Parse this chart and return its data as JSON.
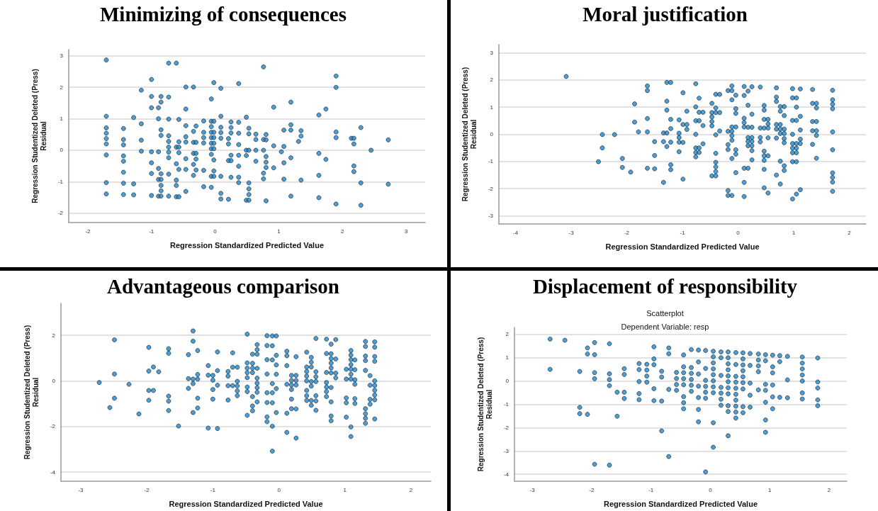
{
  "chart_data": [
    {
      "type": "scatter",
      "title": "Minimizing of consequences",
      "xlabel": "Regression Standardized Predicted Value",
      "ylabel": "Regression Studentized Deleted (Press)\nResidual",
      "xlim": [
        -2.3,
        3.3
      ],
      "ylim": [
        -2.3,
        3.2
      ],
      "xticks": [
        -2,
        -1,
        0,
        1,
        2,
        3
      ],
      "yticks": [
        -2,
        -1,
        0,
        1,
        2,
        3
      ],
      "grid": "y",
      "marker": "circle",
      "color": "#1f86cc",
      "x": [
        -1.71,
        -1.71,
        -1.71,
        -1.71,
        -1.71,
        -1.71,
        -1.71,
        -1.71,
        -1.71,
        -1.44,
        -1.44,
        -1.44,
        -1.44,
        -1.44,
        -1.44,
        -1.44,
        -1.44,
        -1.28,
        -1.28,
        -1.28,
        -1.16,
        -1.16,
        -1.16,
        -1.16,
        -1.0,
        -1.0,
        -1.0,
        -1.0,
        -1.0,
        -1.0,
        -1.0,
        -0.89,
        -0.89,
        -0.89,
        -0.89,
        -0.89,
        -0.89,
        -0.85,
        -0.85,
        -0.85,
        -0.85,
        -0.85,
        -0.85,
        -0.85,
        -0.85,
        -0.85,
        -0.73,
        -0.73,
        -0.73,
        -0.73,
        -0.73,
        -0.73,
        -0.73,
        -0.73,
        -0.73,
        -0.73,
        -0.61,
        -0.61,
        -0.61,
        -0.61,
        -0.61,
        -0.61,
        -0.57,
        -0.57,
        -0.57,
        -0.57,
        -0.57,
        -0.57,
        -0.46,
        -0.46,
        -0.46,
        -0.46,
        -0.46,
        -0.46,
        -0.46,
        -0.46,
        -0.34,
        -0.34,
        -0.34,
        -0.34,
        -0.34,
        -0.34,
        -0.3,
        -0.3,
        -0.3,
        -0.3,
        -0.3,
        -0.18,
        -0.18,
        -0.18,
        -0.18,
        -0.18,
        -0.18,
        -0.06,
        -0.06,
        -0.06,
        -0.06,
        -0.06,
        -0.06,
        -0.06,
        -0.06,
        -0.06,
        -0.06,
        -0.02,
        -0.02,
        -0.02,
        -0.02,
        -0.02,
        -0.02,
        -0.02,
        -0.02,
        -0.02,
        0.09,
        0.09,
        0.09,
        0.09,
        0.09,
        0.09,
        0.09,
        0.09,
        0.21,
        0.21,
        0.21,
        0.21,
        0.25,
        0.25,
        0.25,
        0.25,
        0.25,
        0.25,
        0.37,
        0.37,
        0.37,
        0.37,
        0.37,
        0.37,
        0.37,
        0.37,
        0.49,
        0.49,
        0.49,
        0.49,
        0.53,
        0.53,
        0.53,
        0.53,
        0.53,
        0.53,
        0.53,
        0.64,
        0.64,
        0.64,
        0.64,
        0.76,
        0.76,
        0.76,
        0.76,
        0.76,
        0.8,
        0.8,
        0.8,
        0.8,
        0.8,
        0.8,
        0.92,
        0.92,
        0.92,
        1.04,
        1.08,
        1.08,
        1.08,
        1.08,
        1.19,
        1.19,
        1.19,
        1.19,
        1.19,
        1.31,
        1.35,
        1.35,
        1.35,
        1.63,
        1.63,
        1.63,
        1.63,
        1.74,
        1.74,
        1.9,
        1.9,
        1.9,
        1.9,
        1.9,
        2.14,
        2.18,
        2.18,
        2.18,
        2.18,
        2.29,
        2.29,
        2.29,
        2.45,
        2.72,
        2.72
      ],
      "values": [
        2.87,
        1.08,
        0.71,
        0.54,
        0.37,
        0.2,
        -0.15,
        -1.03,
        -1.39,
        0.69,
        0.34,
        0.17,
        -0.18,
        -0.35,
        -0.7,
        -1.05,
        -1.41,
        1.04,
        -1.07,
        -1.42,
        1.91,
        0.84,
        0.32,
        -0.03,
        2.25,
        1.71,
        1.35,
        -0.05,
        -0.4,
        -0.74,
        -1.44,
        1.35,
        1.0,
        -0.05,
        -0.58,
        -0.93,
        -1.46,
        1.71,
        1.53,
        0.65,
        0.47,
        -0.75,
        -0.93,
        -1.12,
        -1.29,
        -1.46,
        2.77,
        1.69,
        0.99,
        0.46,
        0.28,
        0.1,
        -0.06,
        -0.24,
        -0.76,
        -1.46,
        2.77,
        0.1,
        -0.43,
        -0.95,
        -1.12,
        -1.48,
        0.98,
        0.27,
        0.1,
        -0.08,
        -0.61,
        -1.48,
        2.01,
        1.31,
        0.78,
        0.43,
        0.26,
        -0.27,
        -0.61,
        -1.31,
        2.01,
        0.6,
        0.25,
        -0.1,
        -0.45,
        -0.8,
        0.77,
        0.25,
        -0.1,
        -0.28,
        -0.63,
        0.93,
        0.57,
        0.4,
        0.23,
        -0.64,
        -1.16,
        1.63,
        0.92,
        0.75,
        0.57,
        0.4,
        0.22,
        0.05,
        -0.13,
        -0.83,
        -1.18,
        2.15,
        0.92,
        0.57,
        0.4,
        0.22,
        0.05,
        -0.31,
        -0.66,
        -0.83,
        1.97,
        1.08,
        0.73,
        0.56,
        0.38,
        -0.83,
        -1.37,
        -1.55,
        0.37,
        0.2,
        -0.33,
        -1.56,
        0.9,
        0.72,
        0.55,
        -0.16,
        -0.33,
        -0.86,
        2.12,
        0.89,
        0.54,
        0.18,
        -0.16,
        -0.51,
        -0.86,
        -1.03,
        1.05,
        0.0,
        -0.17,
        -1.59,
        0.7,
        0.52,
        0.0,
        -1.04,
        -1.23,
        -1.41,
        -1.59,
        0.51,
        0.34,
        0.0,
        -0.35,
        2.65,
        0.34,
        0.0,
        -0.73,
        -0.91,
        0.5,
        0.33,
        -0.2,
        -0.38,
        -0.55,
        -1.61,
        1.37,
        0.14,
        -0.56,
        -0.05,
        0.64,
        0.12,
        -0.4,
        -0.92,
        1.53,
        0.81,
        0.64,
        -0.24,
        -1.46,
        0.28,
        0.62,
        0.45,
        -0.95,
        1.12,
        -0.1,
        -0.8,
        -1.51,
        1.31,
        -0.29,
        2.36,
        2.0,
        0.58,
        0.4,
        -1.71,
        0.38,
        0.38,
        0.2,
        -0.5,
        -0.68,
        0.72,
        -1.04,
        -1.75,
        0.0,
        0.33,
        -1.08
      ]
    },
    {
      "type": "scatter",
      "title": "Moral justification",
      "xlabel": "Regression Standardized Predicted Value",
      "ylabel": "Regression Studentized Deleted (Press)\nResidual",
      "xlim": [
        -4.3,
        2.3
      ],
      "ylim": [
        -3.3,
        3.3
      ],
      "xticks": [
        -4,
        -3,
        -2,
        -1,
        0,
        1,
        2
      ],
      "yticks": [
        -3,
        -2,
        -1,
        0,
        1,
        2,
        3
      ],
      "grid": "y",
      "marker": "circle",
      "color": "#1f86cc",
      "x": [
        -3.09,
        -2.51,
        -2.44,
        -2.44,
        -2.22,
        -2.08,
        -2.08,
        -1.93,
        -1.86,
        -1.86,
        -1.79,
        -1.63,
        -1.63,
        -1.63,
        -1.63,
        -1.63,
        -1.5,
        -1.5,
        -1.5,
        -1.34,
        -1.34,
        -1.34,
        -1.28,
        -1.28,
        -1.28,
        -1.28,
        -1.28,
        -1.21,
        -1.21,
        -1.21,
        -1.21,
        -1.21,
        -1.21,
        -1.06,
        -1.06,
        -1.06,
        -1.06,
        -1.06,
        -0.99,
        -0.99,
        -0.99,
        -0.99,
        -0.92,
        -0.92,
        -0.92,
        -0.76,
        -0.76,
        -0.76,
        -0.76,
        -0.76,
        -0.76,
        -0.76,
        -0.7,
        -0.7,
        -0.7,
        -0.7,
        -0.7,
        -0.63,
        -0.63,
        -0.63,
        -0.47,
        -0.47,
        -0.47,
        -0.47,
        -0.47,
        -0.47,
        -0.4,
        -0.4,
        -0.4,
        -0.4,
        -0.4,
        -0.4,
        -0.4,
        -0.4,
        -0.4,
        -0.33,
        -0.33,
        -0.33,
        -0.18,
        -0.18,
        -0.18,
        -0.18,
        -0.18,
        -0.18,
        -0.11,
        -0.11,
        -0.11,
        -0.11,
        -0.11,
        -0.11,
        -0.11,
        -0.11,
        -0.11,
        -0.04,
        -0.04,
        -0.04,
        -0.04,
        -0.04,
        -0.04,
        -0.04,
        0.11,
        0.11,
        0.11,
        0.11,
        0.11,
        0.11,
        0.11,
        0.11,
        0.18,
        0.18,
        0.18,
        0.18,
        0.18,
        0.18,
        0.18,
        0.25,
        0.25,
        0.25,
        0.25,
        0.25,
        0.25,
        0.25,
        0.25,
        0.4,
        0.4,
        0.4,
        0.4,
        0.47,
        0.47,
        0.47,
        0.47,
        0.47,
        0.47,
        0.47,
        0.47,
        0.47,
        0.54,
        0.54,
        0.54,
        0.54,
        0.54,
        0.54,
        0.69,
        0.69,
        0.69,
        0.69,
        0.69,
        0.69,
        0.69,
        0.76,
        0.76,
        0.76,
        0.76,
        0.76,
        0.76,
        0.76,
        0.83,
        0.83,
        0.83,
        0.83,
        0.83,
        0.83,
        0.83,
        0.83,
        0.98,
        0.98,
        0.98,
        0.98,
        0.98,
        0.98,
        0.98,
        0.98,
        0.98,
        1.05,
        1.05,
        1.05,
        1.05,
        1.05,
        1.05,
        1.05,
        1.05,
        1.12,
        1.12,
        1.12,
        1.12,
        1.12,
        1.12,
        1.34,
        1.34,
        1.34,
        1.34,
        1.34,
        1.41,
        1.41,
        1.41,
        1.41,
        1.41,
        1.41,
        1.7,
        1.7,
        1.7,
        1.7,
        1.7,
        1.7,
        1.7,
        1.7,
        1.7,
        1.7
      ],
      "values": [
        2.13,
        -1.01,
        -0.01,
        -0.5,
        -0.01,
        -0.89,
        -1.22,
        -1.39,
        1.12,
        0.45,
        0.09,
        1.78,
        1.61,
        0.58,
        0.09,
        -1.25,
        -0.27,
        -0.78,
        -1.27,
        0.05,
        -0.27,
        -1.77,
        1.91,
        1.22,
        0.89,
        0.05,
        -0.45,
        1.91,
        0.55,
        0.21,
        -0.29,
        -1.12,
        -1.3,
        0.53,
        0.04,
        -0.12,
        -0.29,
        -0.64,
        1.53,
        0.36,
        -0.3,
        -1.65,
        0.85,
        0.36,
        0.18,
        1.86,
        1.01,
        0.5,
        0.0,
        -0.5,
        -0.67,
        -0.83,
        1.33,
        0.81,
        0.5,
        -0.5,
        -0.67,
        0.81,
        0.32,
        -0.35,
        1.14,
        0.8,
        0.64,
        0.47,
        0.31,
        -1.53,
        1.47,
        0.97,
        0.8,
        -0.02,
        -0.7,
        -1.03,
        -1.2,
        -1.37,
        -1.53,
        1.47,
        0.8,
        0.12,
        1.61,
        0.11,
        -0.38,
        -0.56,
        -2.07,
        -2.25,
        1.78,
        1.61,
        1.27,
        0.27,
        0.11,
        -0.05,
        -0.22,
        -0.89,
        -2.25,
        1.44,
        0.94,
        0.77,
        0.27,
        -0.57,
        -0.73,
        -1.41,
        1.76,
        1.43,
        0.59,
        0.43,
        0.27,
        -1.25,
        -1.77,
        -2.29,
        1.59,
        1.07,
        0.26,
        -0.12,
        -0.26,
        -0.42,
        -1.25,
        1.75,
        0.74,
        0.26,
        -0.12,
        -0.26,
        -0.42,
        -0.6,
        -0.94,
        1.74,
        0.23,
        -0.12,
        -0.28,
        1.06,
        0.89,
        0.55,
        0.23,
        -0.62,
        -0.79,
        -0.96,
        -1.29,
        -1.97,
        0.55,
        0.38,
        0.23,
        -0.13,
        -0.79,
        -2.16,
        1.71,
        1.37,
        1.21,
        0.36,
        0.19,
        -0.14,
        -1.5,
        1.02,
        0.85,
        0.36,
        0.19,
        0.03,
        -0.99,
        -1.83,
        1.02,
        0.69,
        0.19,
        0.03,
        -0.16,
        -0.31,
        -1.16,
        -1.33,
        1.68,
        1.34,
        0.51,
        0.0,
        -0.34,
        -0.51,
        -0.68,
        -1.01,
        -2.38,
        1.34,
        1.0,
        0.51,
        -0.34,
        -0.51,
        -0.68,
        -1.01,
        -2.2,
        1.67,
        0.66,
        0.16,
        -0.18,
        -0.34,
        -2.04,
        1.65,
        1.14,
        0.47,
        0.13,
        -0.37,
        1.14,
        0.97,
        0.47,
        0.13,
        -0.04,
        -0.88,
        1.62,
        1.27,
        1.11,
        0.94,
        0.09,
        -0.57,
        -1.42,
        -1.59,
        -1.76,
        -2.1
      ]
    },
    {
      "type": "scatter",
      "title": "Advantageous comparison",
      "xlabel": "Regression Standardized Predicted Value",
      "ylabel": "Regression Studentized Deleted (Press)\nResidual",
      "xlim": [
        -3.3,
        2.3
      ],
      "ylim": [
        -4.4,
        3.4
      ],
      "xticks": [
        -3,
        -2,
        -1,
        0,
        1,
        2
      ],
      "yticks": [
        -4,
        -2,
        0,
        2
      ],
      "grid": "y",
      "marker": "circle",
      "color": "#1f86cc",
      "x": [
        -2.72,
        -2.56,
        -2.49,
        -2.49,
        -2.49,
        -2.27,
        -2.12,
        -1.97,
        -1.97,
        -1.97,
        -1.97,
        -1.9,
        -1.9,
        -1.82,
        -1.67,
        -1.67,
        -1.67,
        -1.67,
        -1.67,
        -1.52,
        -1.37,
        -1.37,
        -1.37,
        -1.3,
        -1.3,
        -1.3,
        -1.3,
        -1.3,
        -1.23,
        -1.23,
        -1.23,
        -1.23,
        -1.23,
        -1.07,
        -1.07,
        -1.07,
        -1.0,
        -1.0,
        -1.0,
        -1.0,
        -0.93,
        -0.93,
        -0.93,
        -0.93,
        -0.77,
        -0.77,
        -0.77,
        -0.77,
        -0.7,
        -0.7,
        -0.7,
        -0.63,
        -0.63,
        -0.63,
        -0.63,
        -0.63,
        -0.48,
        -0.48,
        -0.48,
        -0.48,
        -0.48,
        -0.48,
        -0.48,
        -0.48,
        -0.4,
        -0.4,
        -0.4,
        -0.4,
        -0.4,
        -0.4,
        -0.4,
        -0.33,
        -0.33,
        -0.33,
        -0.33,
        -0.33,
        -0.33,
        -0.33,
        -0.33,
        -0.33,
        -0.18,
        -0.18,
        -0.18,
        -0.18,
        -0.18,
        -0.18,
        -0.18,
        -0.18,
        -0.1,
        -0.1,
        -0.1,
        -0.1,
        -0.1,
        -0.1,
        -0.1,
        -0.1,
        -0.04,
        -0.04,
        -0.04,
        -0.04,
        -0.04,
        -0.04,
        0.12,
        0.12,
        0.12,
        0.12,
        0.12,
        0.12,
        0.19,
        0.19,
        0.19,
        0.19,
        0.19,
        0.19,
        0.26,
        0.26,
        0.26,
        0.26,
        0.26,
        0.26,
        0.42,
        0.42,
        0.42,
        0.42,
        0.42,
        0.42,
        0.42,
        0.42,
        0.49,
        0.49,
        0.49,
        0.49,
        0.49,
        0.49,
        0.49,
        0.56,
        0.56,
        0.56,
        0.56,
        0.56,
        0.56,
        0.56,
        0.72,
        0.72,
        0.72,
        0.72,
        0.72,
        0.72,
        0.72,
        0.79,
        0.79,
        0.79,
        0.79,
        0.79,
        0.79,
        0.79,
        0.79,
        0.79,
        0.79,
        0.86,
        0.86,
        0.86,
        0.86,
        1.02,
        1.02,
        1.02,
        1.02,
        1.02,
        1.09,
        1.09,
        1.09,
        1.09,
        1.09,
        1.09,
        1.09,
        1.09,
        1.09,
        1.15,
        1.15,
        1.15,
        1.15,
        1.15,
        1.15,
        1.31,
        1.31,
        1.31,
        1.31,
        1.31,
        1.31,
        1.31,
        1.31,
        1.31,
        1.38,
        1.38,
        1.38,
        1.38,
        1.45,
        1.45,
        1.45,
        1.45,
        1.45,
        1.45,
        1.45,
        1.45,
        1.45,
        1.45
      ],
      "values": [
        -0.07,
        -1.17,
        1.8,
        0.3,
        -0.76,
        -0.15,
        -1.45,
        1.47,
        0.43,
        -0.42,
        -0.85,
        0.61,
        -0.42,
        0.4,
        1.41,
        1.21,
        -0.67,
        -0.89,
        -1.3,
        -1.98,
        1.15,
        0.1,
        -0.33,
        2.19,
        1.74,
        0.08,
        -0.12,
        -1.39,
        1.33,
        0.28,
        0.08,
        -0.76,
        -1.19,
        0.67,
        0.25,
        -2.07,
        0.24,
        0.03,
        -0.38,
        -0.8,
        1.27,
        0.45,
        -0.19,
        -2.09,
        0.41,
        0.21,
        -0.21,
        -0.84,
        1.23,
        0.6,
        -0.21,
        0.6,
        -0.02,
        -0.22,
        -0.44,
        -0.65,
        2.05,
        0.79,
        0.56,
        0.36,
        0.14,
        -0.27,
        -0.47,
        -1.51,
        1.17,
        0.77,
        0.56,
        0.36,
        -0.69,
        -1.1,
        -1.31,
        1.59,
        1.37,
        1.17,
        0.55,
        0.12,
        -0.1,
        -0.3,
        -0.5,
        -0.92,
        1.98,
        1.55,
        0.93,
        0.3,
        -0.52,
        -0.95,
        -1.58,
        -1.79,
        1.97,
        1.54,
        0.92,
        -0.12,
        -0.52,
        -0.96,
        -1.99,
        -3.08,
        1.97,
        1.12,
        0.7,
        0.29,
        -0.34,
        -1.39,
        1.3,
        1.1,
        0.67,
        -0.15,
        -1.42,
        -2.26,
        0.24,
        0.02,
        -0.18,
        -0.38,
        -0.8,
        -1.22,
        1.06,
        0.24,
        0.02,
        -0.18,
        -1.23,
        -2.51,
        1.26,
        0.61,
        0.41,
        0.21,
        0.0,
        -0.42,
        -0.65,
        -0.86,
        1.03,
        0.82,
        0.61,
        -0.03,
        -0.23,
        -0.86,
        -1.07,
        1.86,
        0.4,
        0.18,
        -0.03,
        -0.65,
        -0.88,
        -1.29,
        1.83,
        1.2,
        0.37,
        -0.07,
        -0.27,
        -0.47,
        -0.69,
        1.61,
        1.19,
        0.98,
        0.78,
        0.57,
        0.35,
        -0.29,
        -0.92,
        -1.54,
        -1.75,
        1.81,
        0.96,
        0.34,
        0.13,
        0.51,
        0.08,
        -0.75,
        -0.96,
        -1.59,
        1.33,
        1.13,
        0.93,
        0.71,
        0.51,
        0.29,
        0.08,
        -2.02,
        -2.44,
        0.92,
        0.49,
        0.05,
        -0.15,
        -0.78,
        -0.99,
        1.73,
        1.51,
        1.09,
        0.89,
        0.46,
        -1.22,
        -1.44,
        -1.64,
        -1.86,
        0.23,
        -0.19,
        -0.81,
        -1.02,
        1.71,
        1.48,
        1.07,
        0.86,
        0.0,
        -0.2,
        -0.41,
        -0.62,
        -0.83,
        -1.67
      ]
    },
    {
      "type": "scatter",
      "title": "Displacement of responsibility",
      "subtitle": "Scatterplot\nDependent Variable: resp",
      "xlabel": "Regression Standardized Predicted Value",
      "ylabel": "Regression Studentized Deleted (Press)\nResidual",
      "xlim": [
        -3.3,
        2.3
      ],
      "ylim": [
        -4.3,
        2.3
      ],
      "xticks": [
        -3,
        -2,
        -1,
        0,
        1,
        2
      ],
      "yticks": [
        -4,
        -3,
        -2,
        -1,
        0,
        1,
        2
      ],
      "grid": "y",
      "marker": "circle",
      "color": "#1f86cc",
      "x": [
        -2.7,
        -2.7,
        -2.45,
        -2.2,
        -2.2,
        -2.2,
        -2.07,
        -2.07,
        -2.07,
        -1.95,
        -1.95,
        -1.95,
        -1.95,
        -1.95,
        -1.7,
        -1.7,
        -1.7,
        -1.7,
        -1.7,
        -1.57,
        -1.57,
        -1.45,
        -1.45,
        -1.45,
        -1.45,
        -1.2,
        -1.2,
        -1.2,
        -1.2,
        -1.2,
        -1.07,
        -1.07,
        -1.07,
        -1.07,
        -0.95,
        -0.95,
        -0.95,
        -0.95,
        -0.95,
        -0.82,
        -0.82,
        -0.82,
        -0.82,
        -0.7,
        -0.7,
        -0.7,
        -0.7,
        -0.57,
        -0.57,
        -0.57,
        -0.57,
        -0.45,
        -0.45,
        -0.45,
        -0.45,
        -0.45,
        -0.45,
        -0.45,
        -0.45,
        -0.32,
        -0.32,
        -0.32,
        -0.32,
        -0.32,
        -0.32,
        -0.2,
        -0.2,
        -0.2,
        -0.2,
        -0.2,
        -0.2,
        -0.2,
        -0.08,
        -0.08,
        -0.08,
        -0.08,
        -0.08,
        -0.08,
        -0.08,
        0.05,
        0.05,
        0.05,
        0.05,
        0.05,
        0.05,
        0.05,
        0.05,
        0.05,
        0.05,
        0.18,
        0.18,
        0.18,
        0.18,
        0.18,
        0.18,
        0.18,
        0.3,
        0.3,
        0.3,
        0.3,
        0.3,
        0.3,
        0.3,
        0.3,
        0.3,
        0.3,
        0.3,
        0.43,
        0.43,
        0.43,
        0.43,
        0.43,
        0.43,
        0.43,
        0.43,
        0.43,
        0.43,
        0.55,
        0.55,
        0.55,
        0.55,
        0.55,
        0.55,
        0.55,
        0.55,
        0.55,
        0.67,
        0.67,
        0.67,
        0.67,
        0.67,
        0.81,
        0.81,
        0.81,
        0.81,
        0.81,
        0.93,
        0.93,
        0.93,
        0.93,
        0.93,
        0.93,
        0.93,
        1.05,
        1.05,
        1.05,
        1.05,
        1.05,
        1.05,
        1.17,
        1.17,
        1.17,
        1.3,
        1.3,
        1.3,
        1.55,
        1.55,
        1.55,
        1.55,
        1.55,
        1.55,
        1.55,
        1.81,
        1.81,
        1.81,
        1.81,
        1.81
      ],
      "values": [
        1.8,
        0.5,
        1.75,
        0.41,
        -1.13,
        -1.4,
        1.42,
        1.16,
        -1.43,
        1.65,
        1.13,
        0.36,
        0.1,
        -3.57,
        1.6,
        0.31,
        0.06,
        -0.2,
        -3.61,
        -0.48,
        -1.51,
        0.53,
        0.28,
        -0.48,
        -0.75,
        0.75,
        0.49,
        -0.02,
        -0.54,
        -0.8,
        0.72,
        0.47,
        0.21,
        -0.05,
        1.47,
        0.95,
        0.7,
        -0.33,
        -0.84,
        0.42,
        0.17,
        -0.86,
        -2.14,
        1.42,
        1.17,
        -0.36,
        -3.24,
        0.37,
        0.11,
        -0.15,
        -0.4,
        1.12,
        0.61,
        0.36,
        0.1,
        -0.16,
        -0.67,
        -0.93,
        -1.19,
        1.35,
        0.58,
        0.33,
        0.07,
        -0.18,
        -0.44,
        1.33,
        0.82,
        0.3,
        -0.22,
        -0.71,
        -1.22,
        -1.75,
        1.31,
        0.54,
        0.03,
        -0.23,
        -0.48,
        -0.74,
        -3.9,
        1.28,
        1.04,
        0.78,
        0.52,
        0.27,
        0.01,
        -0.25,
        -0.5,
        -1.79,
        -2.84,
        1.25,
        1.0,
        0.24,
        -0.27,
        -0.52,
        -0.78,
        -1.04,
        1.25,
        1.0,
        0.74,
        0.48,
        0.22,
        -0.03,
        -0.29,
        -0.55,
        -1.06,
        -1.31,
        -2.35,
        1.22,
        0.71,
        0.2,
        -0.05,
        -0.31,
        -0.57,
        -0.82,
        -1.08,
        -1.33,
        -1.59,
        1.21,
        0.95,
        0.69,
        0.44,
        0.18,
        -0.07,
        -0.34,
        -1.1,
        -1.36,
        1.18,
        0.67,
        -0.09,
        -0.61,
        -1.12,
        1.16,
        0.9,
        0.65,
        0.4,
        -0.38,
        1.13,
        0.87,
        -0.14,
        -0.4,
        -0.91,
        -1.67,
        -2.2,
        1.11,
        0.61,
        0.35,
        -0.17,
        -0.68,
        -1.19,
        1.09,
        0.83,
        -0.7,
        1.06,
        0.05,
        -0.72,
        1.03,
        0.77,
        0.52,
        0.26,
        0.0,
        -0.51,
        -0.77,
        0.99,
        -0.04,
        -0.3,
        -0.81,
        -1.06
      ]
    }
  ]
}
